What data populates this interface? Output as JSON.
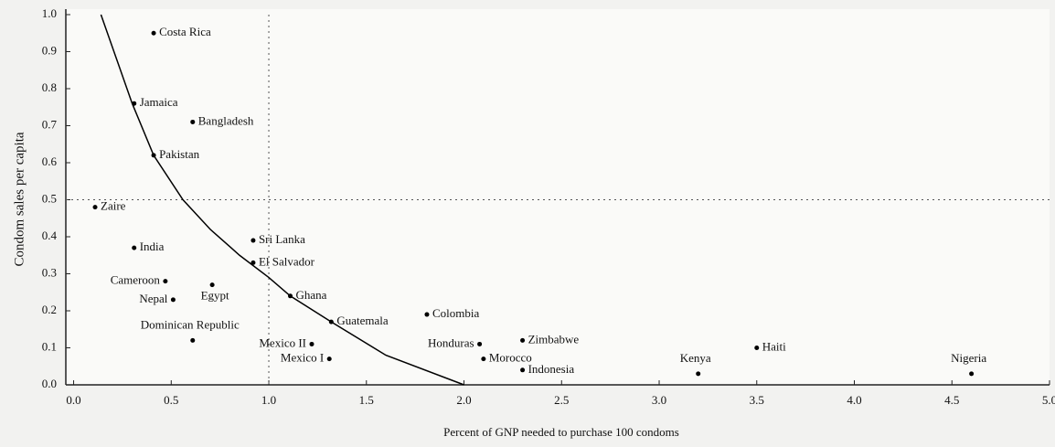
{
  "chart_data": {
    "type": "scatter",
    "xlabel": "Percent of GNP needed to purchase 100 condoms",
    "ylabel": "Condom sales per capita",
    "series": [
      {
        "color": "#000000",
        "labels": [
          "Costa Rica",
          "Jamaica",
          "Bangladesh",
          "Pakistan",
          "Zaire",
          "India",
          "Sri Lanka",
          "El Salvador",
          "Cameroon",
          "Egypt",
          "Nepal",
          "Ghana",
          "Guatemala",
          "Colombia",
          "Dominican Republic",
          "Mexico II",
          "Mexico I",
          "Honduras",
          "Zimbabwe",
          "Morocco",
          "Indonesia",
          "Kenya",
          "Haiti",
          "Nigeria"
        ],
        "x": [
          0.41,
          0.31,
          0.61,
          0.41,
          0.11,
          0.31,
          0.92,
          0.92,
          0.47,
          0.71,
          0.51,
          1.11,
          1.32,
          1.81,
          0.61,
          1.22,
          1.31,
          2.08,
          2.3,
          2.1,
          2.3,
          3.2,
          3.5,
          4.6
        ],
        "values": [
          0.95,
          0.76,
          0.71,
          0.62,
          0.48,
          0.37,
          0.39,
          0.33,
          0.28,
          0.27,
          0.23,
          0.24,
          0.17,
          0.19,
          0.12,
          0.11,
          0.07,
          0.11,
          0.12,
          0.07,
          0.04,
          0.03,
          0.1,
          0.03
        ]
      }
    ],
    "curve": {
      "color": "#000000",
      "x": [
        0.14,
        0.3,
        0.41,
        0.56,
        0.7,
        0.85,
        1.0,
        1.11,
        1.32,
        1.6,
        2.0
      ],
      "values": [
        1.0,
        0.76,
        0.62,
        0.5,
        0.42,
        0.35,
        0.29,
        0.24,
        0.17,
        0.08,
        0.0
      ]
    },
    "vline": 1.0,
    "hline": 0.5,
    "xlim": [
      -0.04,
      5.0
    ],
    "ylim": [
      0,
      1.0
    ],
    "xticks": [
      {
        "value": 0,
        "label": "0.0"
      },
      0.5,
      {
        "value": 1,
        "label": "1.0"
      },
      1.5,
      {
        "value": 2,
        "label": "2.0"
      },
      2.5,
      {
        "value": 3,
        "label": "3.0"
      },
      3.5,
      {
        "value": 4,
        "label": "4.0"
      },
      4.5,
      {
        "value": 5,
        "label": "5.0"
      }
    ],
    "yticks": [
      {
        "value": 0,
        "label": "0.0"
      },
      0.1,
      0.2,
      0.3,
      0.4,
      0.5,
      0.6,
      0.7,
      0.8,
      0.9,
      {
        "value": 1,
        "label": "1.0"
      }
    ]
  }
}
